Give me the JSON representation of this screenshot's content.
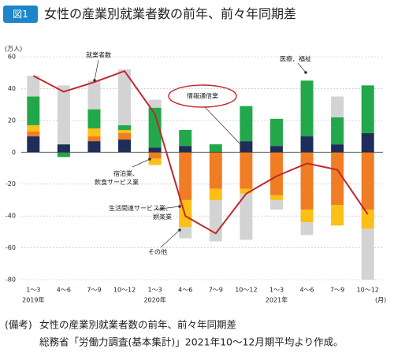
{
  "chart_data": {
    "type": "stacked_bar_line",
    "figure_label": "図1",
    "title": "女性の産業別就業者数の前年、前々年同期差",
    "y_unit": "(万人)",
    "x_unit": "(月)",
    "categories": [
      "1～3",
      "4～6",
      "7～9",
      "10～12",
      "1～3",
      "4～6",
      "7～9",
      "10～12",
      "1～3",
      "4～6",
      "7～9",
      "10～12"
    ],
    "category_years": [
      "2019年",
      null,
      null,
      null,
      "2020年",
      null,
      null,
      null,
      "2021年",
      null,
      null,
      null
    ],
    "ylim": [
      -80,
      60
    ],
    "yticks": [
      60,
      40,
      20,
      0,
      -20,
      -40,
      -60,
      -80
    ],
    "series": [
      {
        "name": "情報通信業",
        "color": "#1f2d5a",
        "values": [
          10,
          5,
          7,
          8,
          3,
          4,
          0,
          7,
          4,
          10,
          5,
          12
        ]
      },
      {
        "name": "宿泊業、飲食サービス業",
        "color": "#f07d24",
        "values": [
          3,
          0,
          3,
          4,
          -4,
          -30,
          -23,
          -23,
          -27,
          -36,
          -33,
          -36
        ]
      },
      {
        "name": "生活関連サービス業、娯楽業",
        "color": "#fbbf16",
        "values": [
          4,
          0,
          5,
          2,
          -4,
          -17,
          -7,
          -3,
          -3,
          -8,
          -13,
          -12
        ]
      },
      {
        "name": "医療、福祉",
        "color": "#22a84a",
        "values": [
          18,
          -3,
          12,
          3,
          25,
          10,
          5,
          22,
          17,
          35,
          17,
          30
        ]
      },
      {
        "name": "その他",
        "color": "#d3d3d3",
        "values": [
          13,
          37,
          18,
          35,
          5,
          -7,
          -26,
          -29,
          -6,
          -8,
          13,
          -32
        ]
      }
    ],
    "line": {
      "name": "就業者数",
      "color": "#c1272d",
      "values": [
        48,
        38,
        44,
        51,
        24,
        -40,
        -51,
        -26,
        -15,
        -7,
        -11,
        -39
      ]
    },
    "note_label": "(備考)",
    "notes": [
      "女性の産業別就業者数の前年、前々年同期差",
      "総務省「労働力調査(基本集計)」2021年10～12月期平均より作成。"
    ]
  }
}
